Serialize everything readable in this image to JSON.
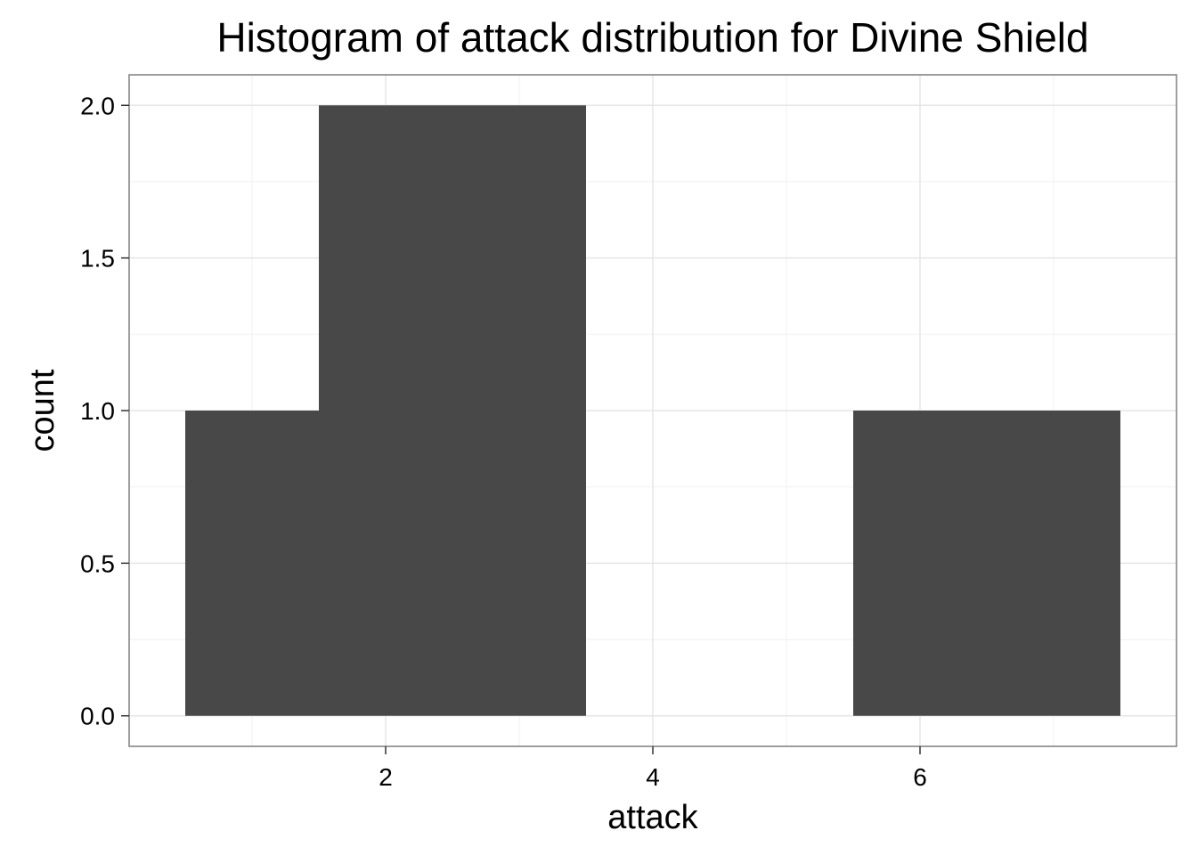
{
  "chart_data": {
    "type": "bar",
    "title": "Histogram of attack distribution for Divine Shield",
    "xlabel": "attack",
    "ylabel": "count",
    "bins": [
      {
        "x_start": 0.5,
        "x_end": 1.5,
        "count": 1
      },
      {
        "x_start": 1.5,
        "x_end": 3.5,
        "count": 2
      },
      {
        "x_start": 3.5,
        "x_end": 5.5,
        "count": 0
      },
      {
        "x_start": 5.5,
        "x_end": 7.5,
        "count": 1
      }
    ],
    "xlim": [
      0.08,
      7.92
    ],
    "ylim": [
      -0.1,
      2.1
    ],
    "x_ticks": [
      2,
      4,
      6
    ],
    "x_tick_labels": [
      "2",
      "4",
      "6"
    ],
    "y_ticks": [
      0.0,
      0.5,
      1.0,
      1.5,
      2.0
    ],
    "y_tick_labels": [
      "0.0",
      "0.5",
      "1.0",
      "1.5",
      "2.0"
    ],
    "grid": true,
    "colors": {
      "bar": "#484848",
      "panel_border": "#7f7f7f",
      "grid_major": "#e5e5e5",
      "grid_minor": "#f2f2f2",
      "tick": "#333333"
    }
  }
}
